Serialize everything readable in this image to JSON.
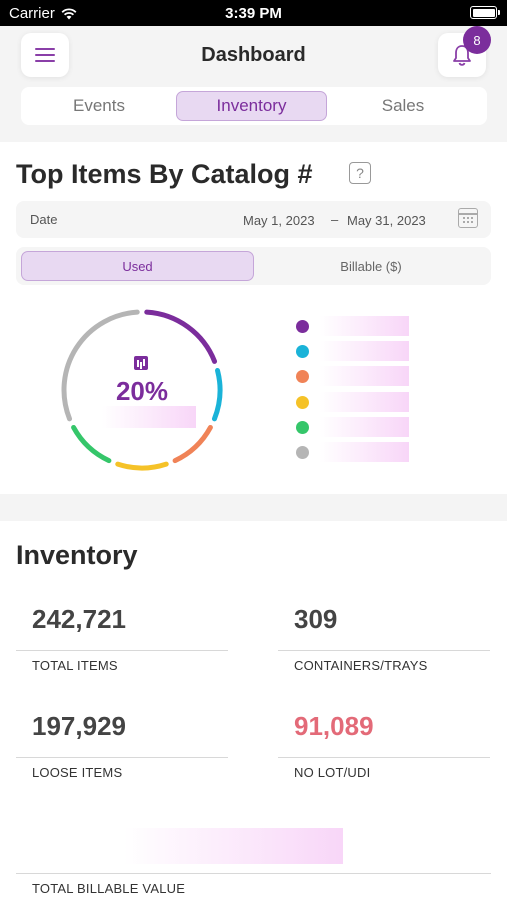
{
  "status_bar": {
    "carrier": "Carrier",
    "time": "3:39 PM"
  },
  "header": {
    "title": "Dashboard",
    "notification_count": "8",
    "tabs": [
      {
        "label": "Events",
        "active": false
      },
      {
        "label": "Inventory",
        "active": true
      },
      {
        "label": "Sales",
        "active": false
      }
    ]
  },
  "top_items": {
    "title": "Top Items By Catalog #",
    "help": "?",
    "date_label": "Date",
    "date_start": "May 1, 2023",
    "date_separator": "–",
    "date_end": "May 31, 2023",
    "toggle": [
      {
        "label": "Used",
        "active": true
      },
      {
        "label": "Billable ($)",
        "active": false
      }
    ],
    "donut_value": "20%",
    "legend_colors": [
      "#7b2d9c",
      "#1ab3d8",
      "#f08357",
      "#f5c228",
      "#35c66a",
      "#b5b5b5"
    ]
  },
  "chart_data": {
    "type": "pie",
    "values": [
      20,
      12,
      12,
      12,
      12,
      32
    ],
    "colors": [
      "#7b2d9c",
      "#1ab3d8",
      "#f08357",
      "#f5c228",
      "#35c66a",
      "#b5b5b5"
    ]
  },
  "inventory": {
    "title": "Inventory",
    "stats": [
      {
        "value": "242,721",
        "label": "TOTAL ITEMS"
      },
      {
        "value": "309",
        "label": "CONTAINERS/TRAYS"
      },
      {
        "value": "197,929",
        "label": "LOOSE ITEMS"
      },
      {
        "value": "91,089",
        "label": "NO LOT/UDI"
      }
    ],
    "total_billable_label": "TOTAL BILLABLE VALUE"
  }
}
